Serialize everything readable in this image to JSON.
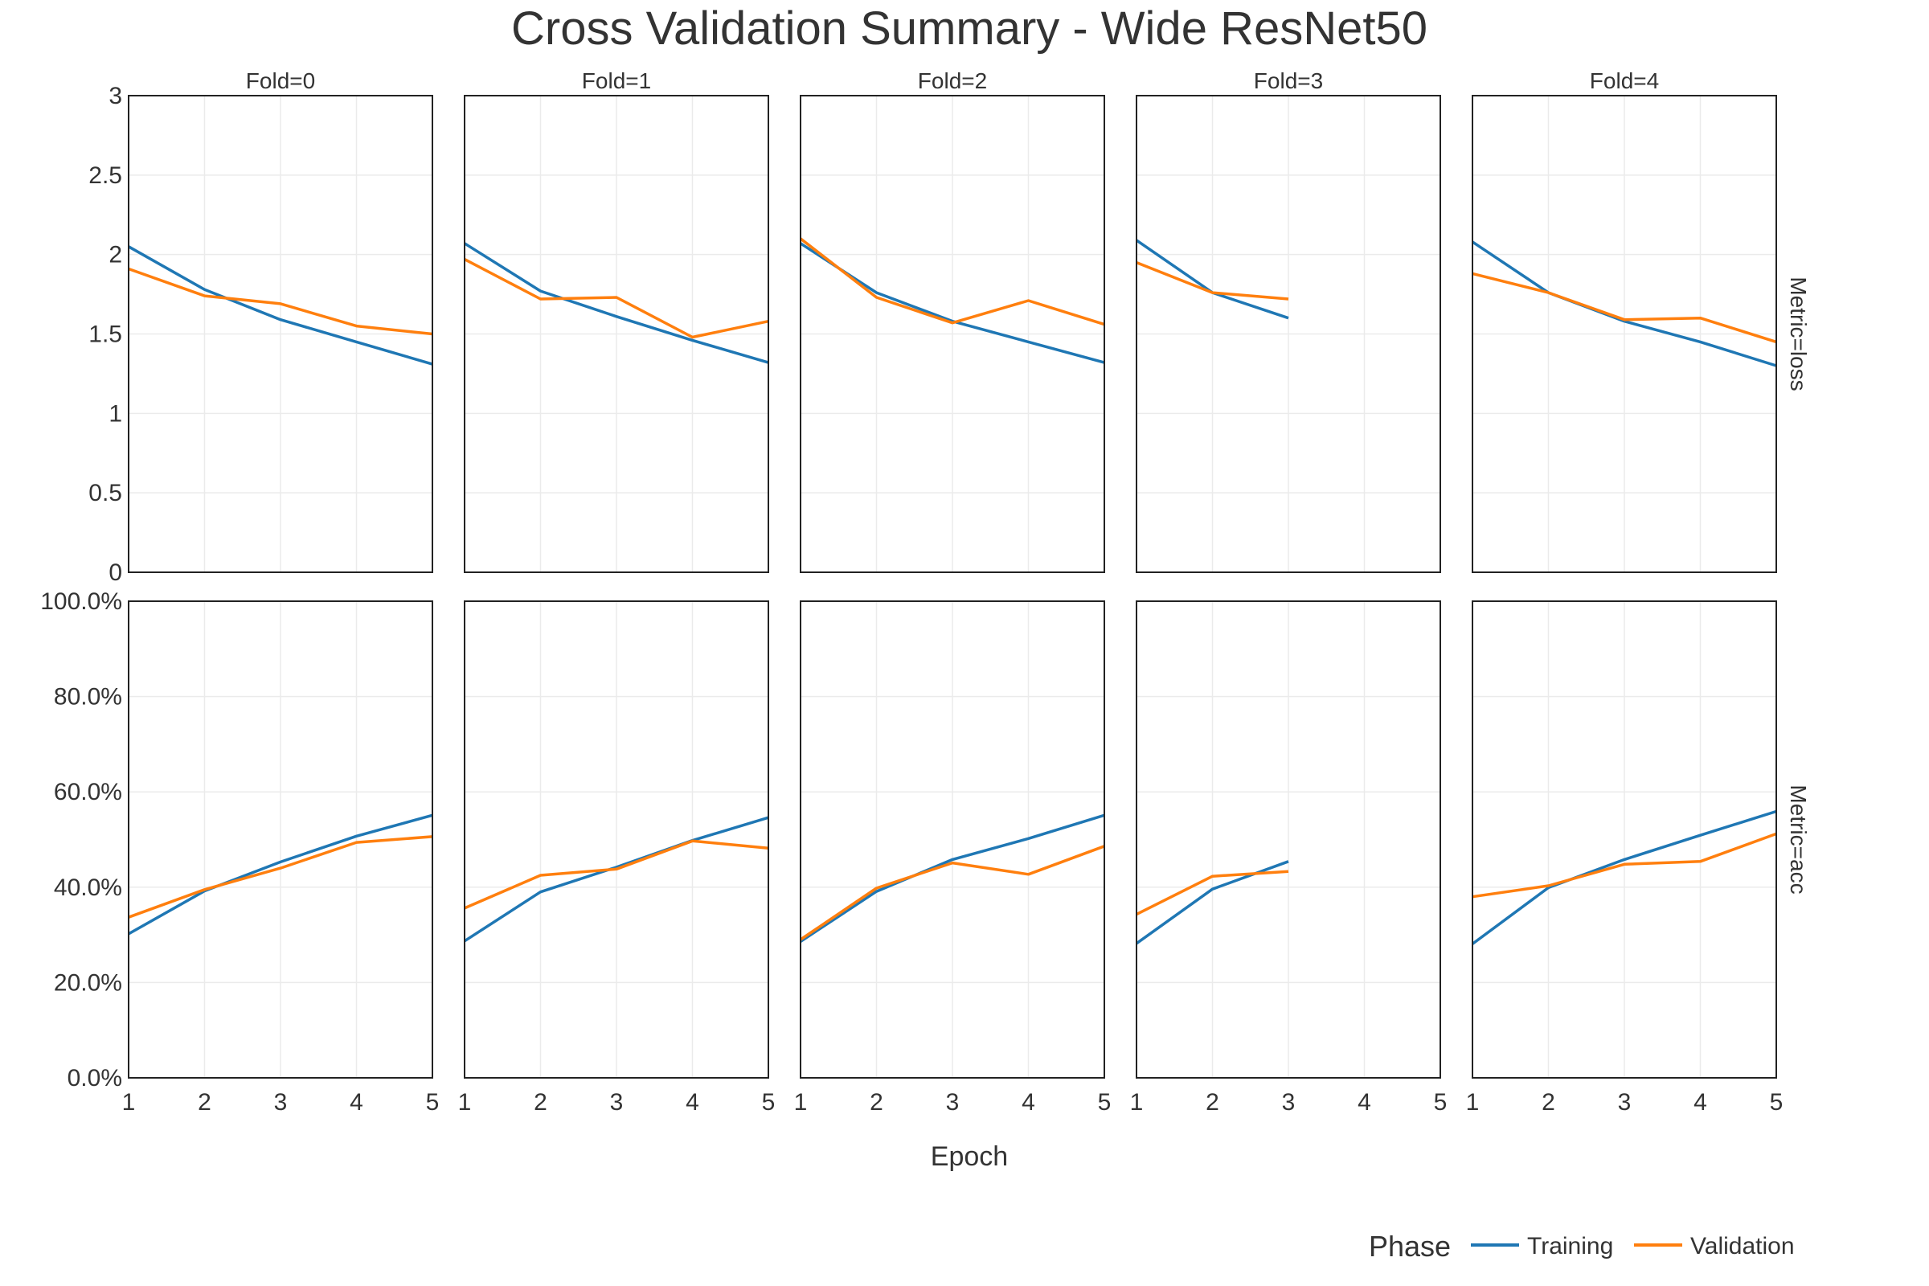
{
  "title": "Cross Validation Summary - Wide ResNet50",
  "x_axis_label": "Epoch",
  "legend": {
    "title": "Phase",
    "items": [
      {
        "label": "Training",
        "color": "#1f77b4"
      },
      {
        "label": "Validation",
        "color": "#ff7f0e"
      }
    ]
  },
  "columns": [
    "Fold=0",
    "Fold=1",
    "Fold=2",
    "Fold=3",
    "Fold=4"
  ],
  "rows": [
    "Metric=loss",
    "Metric=acc"
  ],
  "x_ticks": [
    "1",
    "2",
    "3",
    "4",
    "5"
  ],
  "y_ticks": {
    "loss": [
      "0",
      "0.5",
      "1",
      "1.5",
      "2",
      "2.5",
      "3"
    ],
    "acc": [
      "0.0%",
      "20.0%",
      "40.0%",
      "60.0%",
      "80.0%",
      "100.0%"
    ]
  },
  "chart_data": {
    "type": "line",
    "x": [
      1,
      2,
      3,
      4,
      5
    ],
    "xlim": [
      1,
      5
    ],
    "ylim": {
      "loss": [
        0,
        3
      ],
      "acc": [
        0,
        1
      ]
    },
    "grid": true,
    "legend_position": "bottom-right",
    "panels": [
      {
        "fold": 0,
        "metric": "loss",
        "series": [
          {
            "name": "Training",
            "values": [
              2.05,
              1.78,
              1.59,
              1.45,
              1.31
            ]
          },
          {
            "name": "Validation",
            "values": [
              1.91,
              1.74,
              1.69,
              1.55,
              1.5
            ]
          }
        ]
      },
      {
        "fold": 1,
        "metric": "loss",
        "series": [
          {
            "name": "Training",
            "values": [
              2.07,
              1.77,
              1.61,
              1.46,
              1.32
            ]
          },
          {
            "name": "Validation",
            "values": [
              1.97,
              1.72,
              1.73,
              1.48,
              1.58
            ]
          }
        ]
      },
      {
        "fold": 2,
        "metric": "loss",
        "series": [
          {
            "name": "Training",
            "values": [
              2.07,
              1.76,
              1.58,
              1.45,
              1.32
            ]
          },
          {
            "name": "Validation",
            "values": [
              2.1,
              1.73,
              1.57,
              1.71,
              1.56
            ]
          }
        ]
      },
      {
        "fold": 3,
        "metric": "loss",
        "series": [
          {
            "name": "Training",
            "values": [
              2.09,
              1.76,
              1.6
            ]
          },
          {
            "name": "Validation",
            "values": [
              1.95,
              1.76,
              1.72
            ]
          }
        ]
      },
      {
        "fold": 4,
        "metric": "loss",
        "series": [
          {
            "name": "Training",
            "values": [
              2.08,
              1.76,
              1.58,
              1.45,
              1.3
            ]
          },
          {
            "name": "Validation",
            "values": [
              1.88,
              1.76,
              1.59,
              1.6,
              1.45
            ]
          }
        ]
      },
      {
        "fold": 0,
        "metric": "acc",
        "series": [
          {
            "name": "Training",
            "values": [
              0.302,
              0.392,
              0.453,
              0.507,
              0.551
            ]
          },
          {
            "name": "Validation",
            "values": [
              0.337,
              0.395,
              0.44,
              0.494,
              0.506
            ]
          }
        ]
      },
      {
        "fold": 1,
        "metric": "acc",
        "series": [
          {
            "name": "Training",
            "values": [
              0.287,
              0.39,
              0.442,
              0.498,
              0.546
            ]
          },
          {
            "name": "Validation",
            "values": [
              0.356,
              0.425,
              0.438,
              0.497,
              0.482
            ]
          }
        ]
      },
      {
        "fold": 2,
        "metric": "acc",
        "series": [
          {
            "name": "Training",
            "values": [
              0.286,
              0.391,
              0.458,
              0.502,
              0.551
            ]
          },
          {
            "name": "Validation",
            "values": [
              0.29,
              0.398,
              0.451,
              0.427,
              0.486
            ]
          }
        ]
      },
      {
        "fold": 3,
        "metric": "acc",
        "series": [
          {
            "name": "Training",
            "values": [
              0.282,
              0.396,
              0.454
            ]
          },
          {
            "name": "Validation",
            "values": [
              0.343,
              0.423,
              0.433
            ]
          }
        ]
      },
      {
        "fold": 4,
        "metric": "acc",
        "series": [
          {
            "name": "Training",
            "values": [
              0.281,
              0.399,
              0.458,
              0.509,
              0.559
            ]
          },
          {
            "name": "Validation",
            "values": [
              0.38,
              0.403,
              0.448,
              0.454,
              0.512
            ]
          }
        ]
      }
    ]
  }
}
